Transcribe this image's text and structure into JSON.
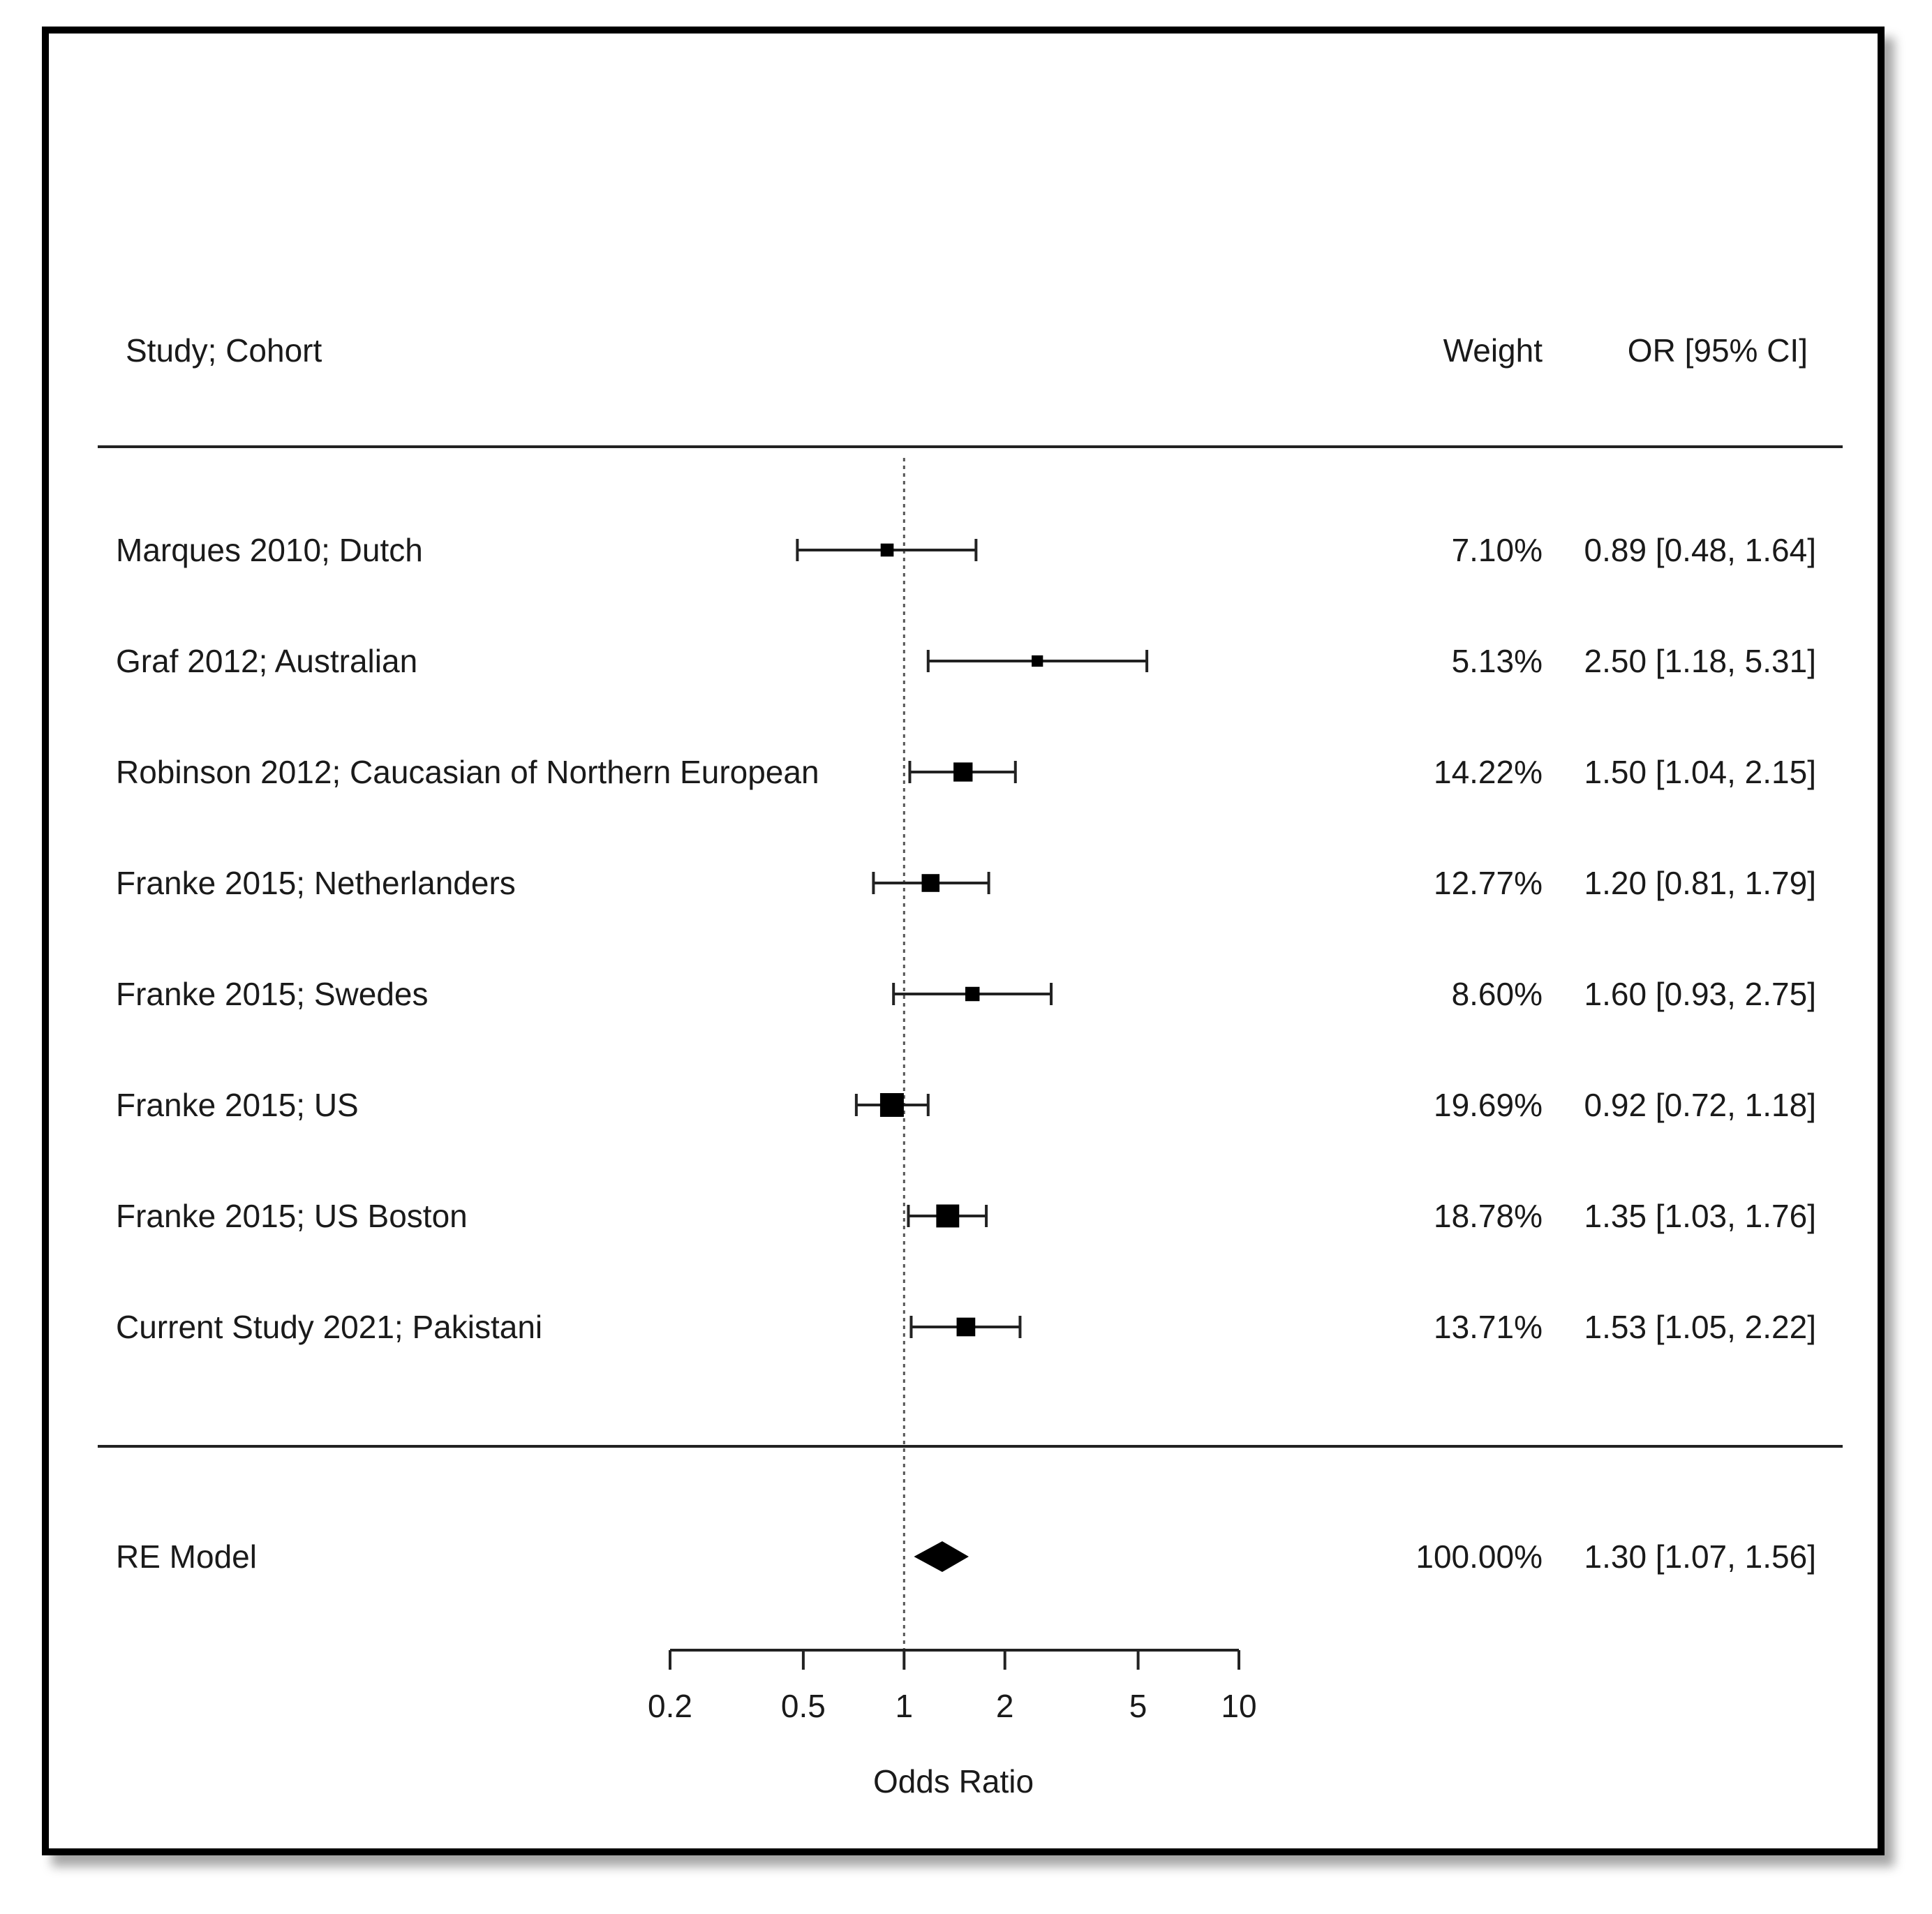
{
  "chart_data": {
    "type": "forest",
    "headers": {
      "study": "Study; Cohort",
      "weight": "Weight",
      "ci": "OR [95% CI]"
    },
    "studies": [
      {
        "label": "Marques 2010; Dutch",
        "or": 0.89,
        "lo": 0.48,
        "hi": 1.64,
        "weight": 7.1,
        "weight_text": "7.10%",
        "ci_text": "0.89 [0.48, 1.64]"
      },
      {
        "label": "Graf 2012; Australian",
        "or": 2.5,
        "lo": 1.18,
        "hi": 5.31,
        "weight": 5.13,
        "weight_text": "5.13%",
        "ci_text": "2.50 [1.18, 5.31]"
      },
      {
        "label": "Robinson 2012; Caucasian of Northern European",
        "or": 1.5,
        "lo": 1.04,
        "hi": 2.15,
        "weight": 14.22,
        "weight_text": "14.22%",
        "ci_text": "1.50 [1.04, 2.15]"
      },
      {
        "label": "Franke 2015; Netherlanders",
        "or": 1.2,
        "lo": 0.81,
        "hi": 1.79,
        "weight": 12.77,
        "weight_text": "12.77%",
        "ci_text": "1.20 [0.81, 1.79]"
      },
      {
        "label": "Franke 2015; Swedes",
        "or": 1.6,
        "lo": 0.93,
        "hi": 2.75,
        "weight": 8.6,
        "weight_text": "8.60%",
        "ci_text": "1.60 [0.93, 2.75]"
      },
      {
        "label": "Franke 2015; US",
        "or": 0.92,
        "lo": 0.72,
        "hi": 1.18,
        "weight": 19.69,
        "weight_text": "19.69%",
        "ci_text": "0.92 [0.72, 1.18]"
      },
      {
        "label": "Franke 2015; US Boston",
        "or": 1.35,
        "lo": 1.03,
        "hi": 1.76,
        "weight": 18.78,
        "weight_text": "18.78%",
        "ci_text": "1.35 [1.03, 1.76]"
      },
      {
        "label": "Current Study 2021; Pakistani",
        "or": 1.53,
        "lo": 1.05,
        "hi": 2.22,
        "weight": 13.71,
        "weight_text": "13.71%",
        "ci_text": "1.53 [1.05, 2.22]"
      }
    ],
    "summary": {
      "label": "RE Model",
      "or": 1.3,
      "lo": 1.07,
      "hi": 1.56,
      "weight_text": "100.00%",
      "ci_text": "1.30 [1.07, 1.56]"
    },
    "x_axis": {
      "label": "Odds Ratio",
      "scale": "log",
      "range": [
        0.2,
        10
      ],
      "ticks": [
        0.2,
        0.5,
        1,
        2,
        5,
        10
      ],
      "tick_labels": [
        "0.2",
        "0.5",
        "1",
        "2",
        "5",
        "10"
      ],
      "reference_line": 1
    }
  }
}
